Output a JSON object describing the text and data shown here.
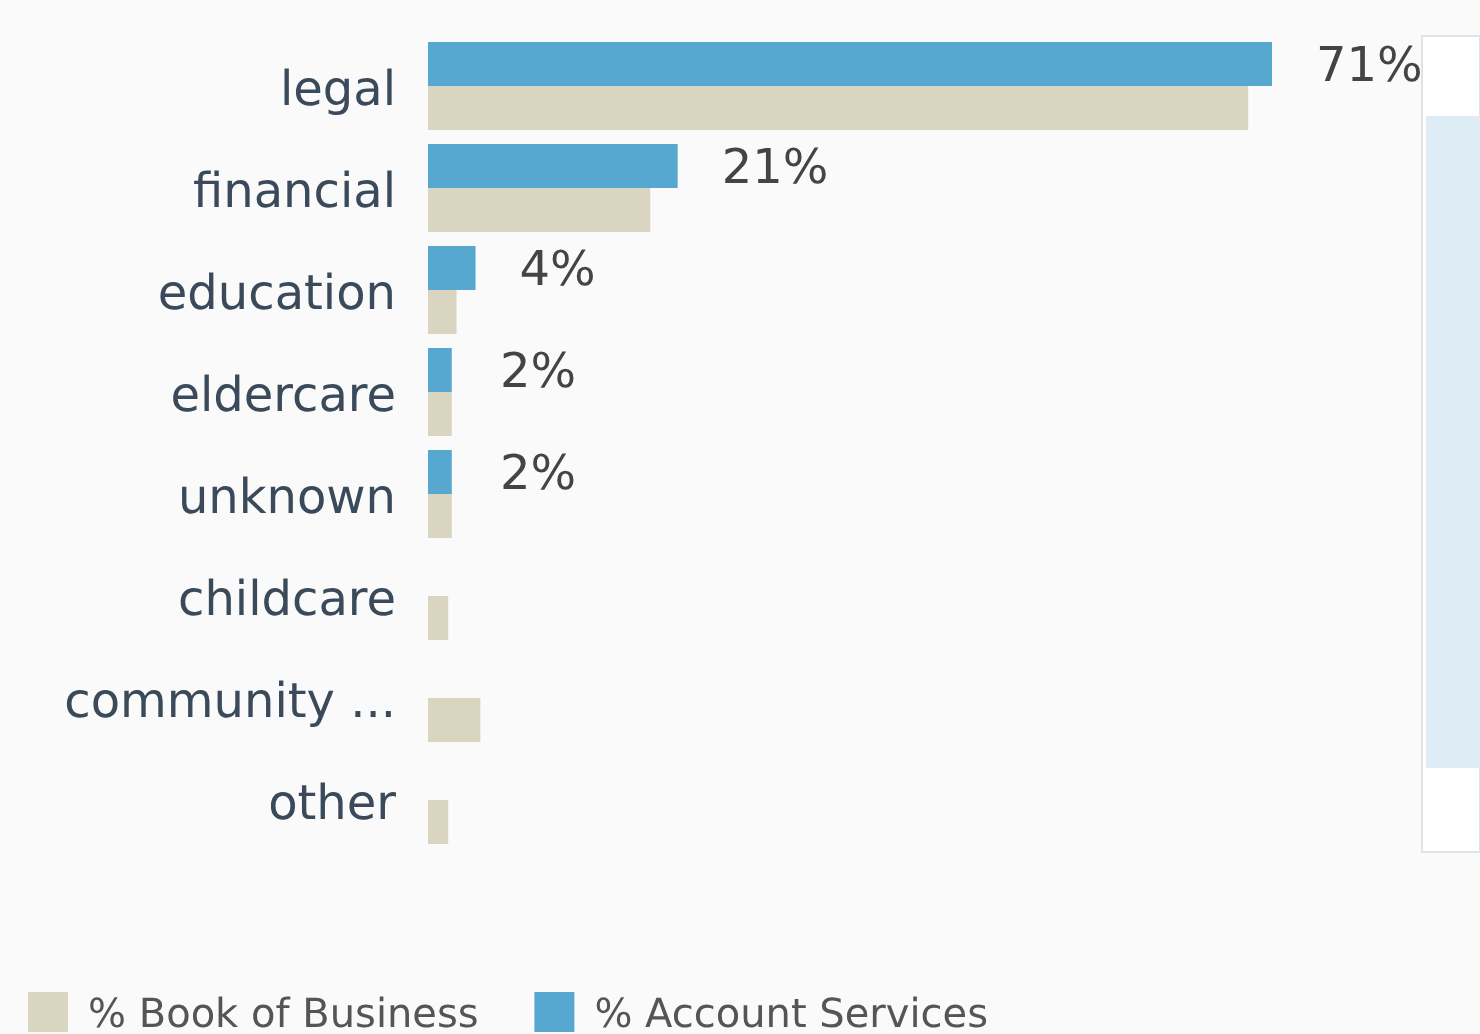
{
  "chart_data": {
    "type": "bar",
    "orientation": "horizontal",
    "categories": [
      "legal",
      "financial",
      "education",
      "eldercare",
      "unknown",
      "childcare",
      "community ...",
      "other"
    ],
    "series": [
      {
        "name": "% Book of Business",
        "color": "#d9d5c1",
        "values": [
          69,
          18.7,
          2.4,
          2,
          2,
          1.7,
          4.4,
          1.7
        ]
      },
      {
        "name": "% Account Services",
        "color": "#56a8d0",
        "values": [
          71,
          21,
          4,
          2,
          2,
          null,
          null,
          null
        ],
        "value_labels": [
          "71%",
          "21%",
          "4%",
          "2%",
          "2%",
          null,
          null,
          null
        ]
      }
    ],
    "legend": "bottom left"
  }
}
